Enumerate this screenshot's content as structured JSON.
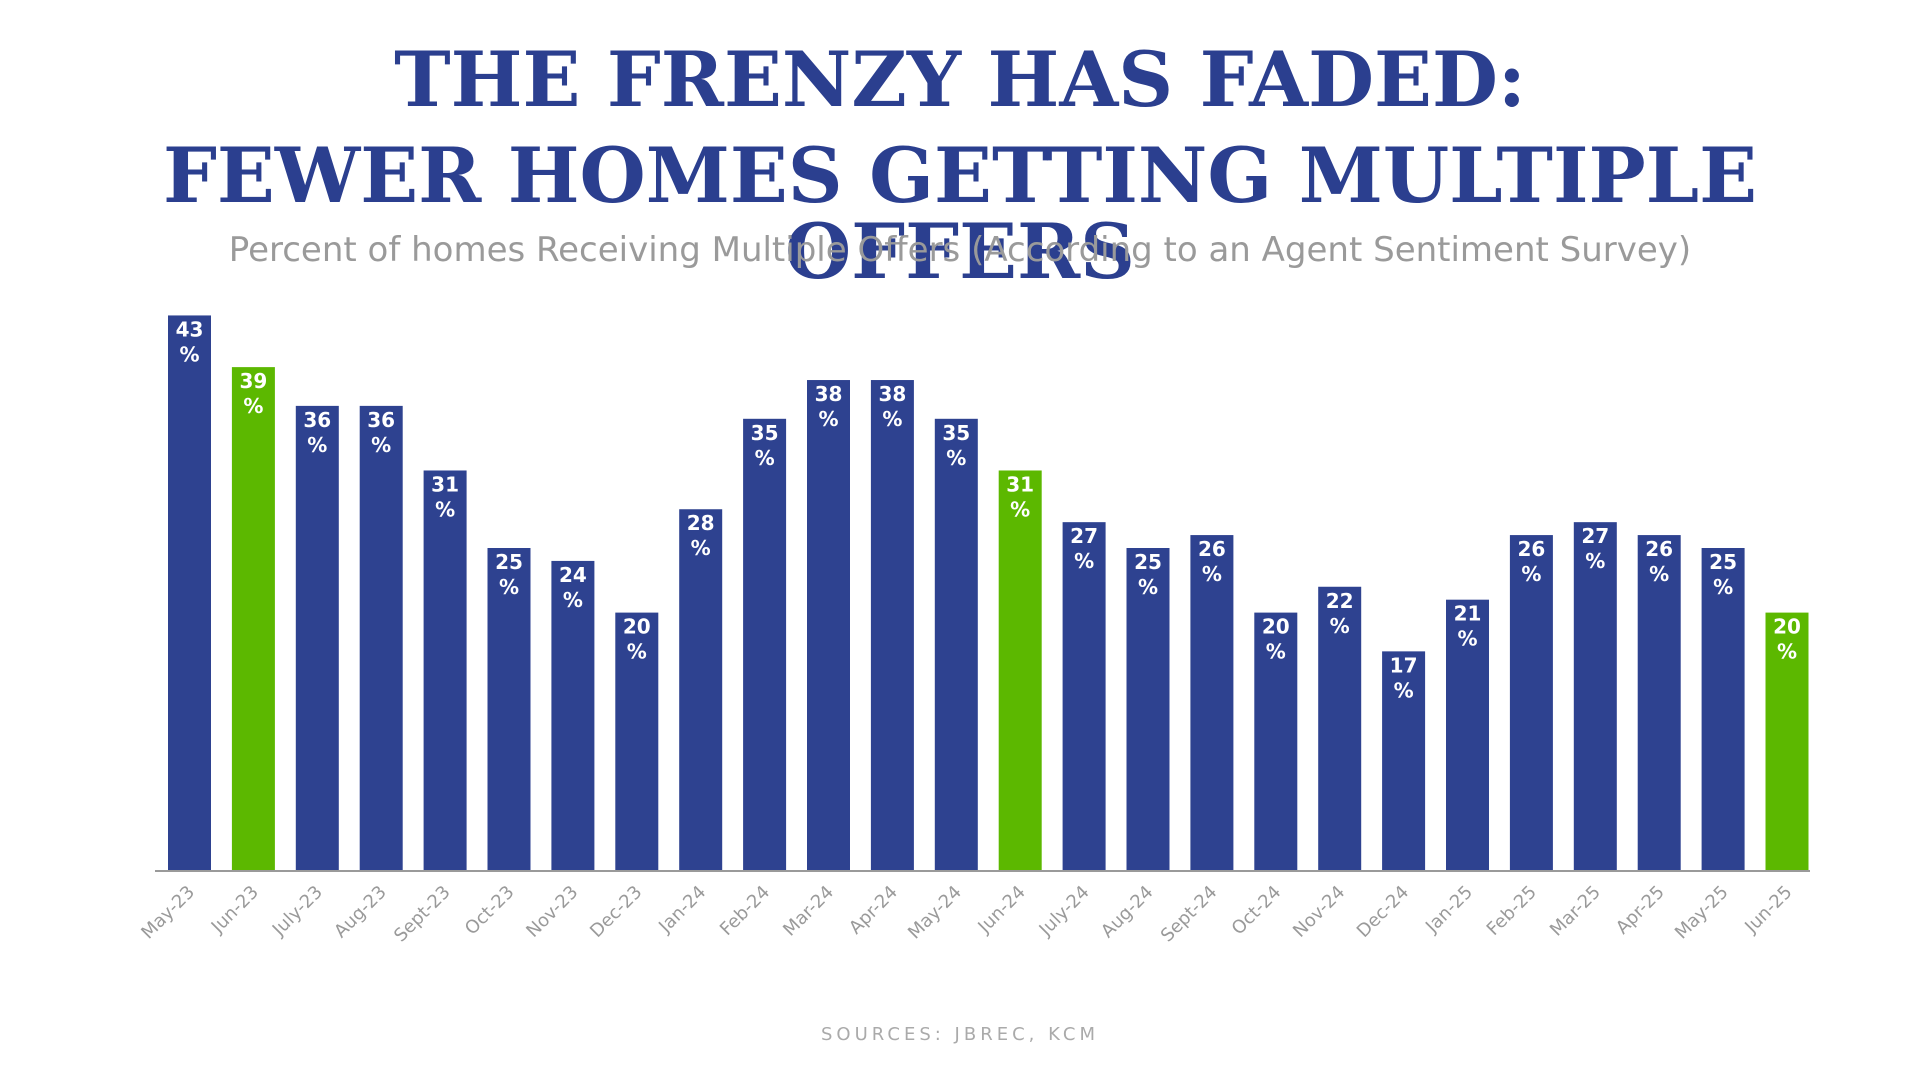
{
  "header": {
    "title_line1": "THE FRENZY HAS FADED:",
    "title_line2": "FEWER HOMES GETTING MULTIPLE OFFERS",
    "subtitle": "Percent of homes Receiving Multiple Offers (According to an Agent Sentiment Survey)"
  },
  "footer": {
    "sources": "SOURCES: JBREC, KCM"
  },
  "colors": {
    "primary_bar": "#2e4290",
    "highlight_bar": "#5cb800",
    "title": "#2b3f8f",
    "axis": "#9a9a9a"
  },
  "chart_data": {
    "type": "bar",
    "title": "THE FRENZY HAS FADED: FEWER HOMES GETTING MULTIPLE OFFERS",
    "subtitle": "Percent of homes Receiving Multiple Offers (According to an Agent Sentiment Survey)",
    "xlabel": "",
    "ylabel": "",
    "unit": "%",
    "ylim": [
      0,
      45
    ],
    "grid": false,
    "categories": [
      "May-23",
      "Jun-23",
      "July-23",
      "Aug-23",
      "Sept-23",
      "Oct-23",
      "Nov-23",
      "Dec-23",
      "Jan-24",
      "Feb-24",
      "Mar-24",
      "Apr-24",
      "May-24",
      "Jun-24",
      "July-24",
      "Aug-24",
      "Sept-24",
      "Oct-24",
      "Nov-24",
      "Dec-24",
      "Jan-25",
      "Feb-25",
      "Mar-25",
      "Apr-25",
      "May-25",
      "Jun-25"
    ],
    "values": [
      43,
      39,
      36,
      36,
      31,
      25,
      24,
      20,
      28,
      35,
      38,
      38,
      35,
      31,
      27,
      25,
      26,
      20,
      22,
      17,
      21,
      26,
      27,
      26,
      25,
      20
    ],
    "highlighted": [
      "Jun-23",
      "Jun-24",
      "Jun-25"
    ]
  }
}
